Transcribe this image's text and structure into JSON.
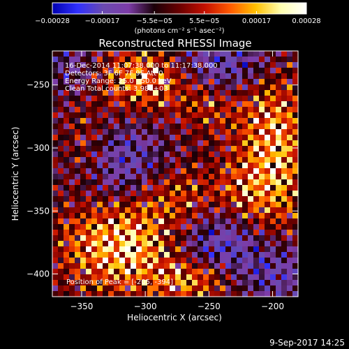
{
  "chart_data": {
    "type": "heatmap",
    "title": "Reconstructed RHESSI Image",
    "xlabel": "Heliocentric X (arcsec)",
    "ylabel": "Heliocentric Y (arcsec)",
    "xlim": [
      -373,
      -180
    ],
    "ylim": [
      -418,
      -223
    ],
    "x_ticks": [
      {
        "value": -350,
        "label": "−350"
      },
      {
        "value": -300,
        "label": "−300"
      },
      {
        "value": -250,
        "label": "−250"
      },
      {
        "value": -200,
        "label": "−200"
      }
    ],
    "y_ticks": [
      {
        "value": -250,
        "label": "−250"
      },
      {
        "value": -300,
        "label": "−300"
      },
      {
        "value": -350,
        "label": "−350"
      },
      {
        "value": -400,
        "label": "−400"
      }
    ],
    "colorbar": {
      "min": -0.00028,
      "max": 0.00028,
      "unit_label": "(photons cm⁻² s⁻¹ asec⁻²)",
      "ticks": [
        {
          "value": -0.00028,
          "label": "−0.00028"
        },
        {
          "value": -0.00017,
          "label": "−0.00017"
        },
        {
          "value": -5.5e-05,
          "label": "−5.5e−05"
        },
        {
          "value": 5.5e-05,
          "label": "5.5e−05"
        },
        {
          "value": 0.00017,
          "label": "0.00017"
        },
        {
          "value": 0.00028,
          "label": "0.00028"
        }
      ]
    },
    "colormap_stops": [
      "#0000b0",
      "#3030ff",
      "#6a4ab0",
      "#7d3ca8",
      "#1a0008",
      "#6a0000",
      "#c41000",
      "#ff5a00",
      "#ffc000",
      "#ffffb0",
      "#ffffff"
    ],
    "info_lines": [
      "16-Dec-2014 11:07:38.000 to 11:17:38.000",
      "Detectors: 3F 6F 7F 9F  Att 0",
      "Energy Range: 25.0 - 50.0 keV",
      "Clean    Total counts: 3.98E+03"
    ],
    "peak_annotation": "Position of Peak = [-205, -394]",
    "peak_position": [
      -205,
      -394
    ],
    "timestamp": "9-Sep-2017 14:25",
    "hot_regions": [
      {
        "x": -318,
        "y": -378,
        "sx": 30,
        "sy": 22,
        "amp": 1.9
      },
      {
        "x": -265,
        "y": -405,
        "sx": 22,
        "sy": 12,
        "amp": 1.2
      },
      {
        "x": -200,
        "y": -300,
        "sx": 18,
        "sy": 45,
        "amp": 1.6
      },
      {
        "x": -300,
        "y": -245,
        "sx": 22,
        "sy": 16,
        "amp": 1.5
      },
      {
        "x": -250,
        "y": -265,
        "sx": 18,
        "sy": 16,
        "amp": 0.7
      },
      {
        "x": -345,
        "y": -300,
        "sx": 14,
        "sy": 22,
        "amp": 0.6
      },
      {
        "x": -275,
        "y": -340,
        "sx": 20,
        "sy": 18,
        "amp": 0.8
      },
      {
        "x": -225,
        "y": -335,
        "sx": 16,
        "sy": 16,
        "amp": 0.7
      }
    ],
    "cold_regions": [
      {
        "x": -320,
        "y": -310,
        "sx": 26,
        "sy": 22,
        "amp": 1.3
      },
      {
        "x": -245,
        "y": -375,
        "sx": 30,
        "sy": 20,
        "amp": 1.4
      },
      {
        "x": -235,
        "y": -235,
        "sx": 34,
        "sy": 18,
        "amp": 1.4
      },
      {
        "x": -195,
        "y": -400,
        "sx": 24,
        "sy": 18,
        "amp": 1.1
      },
      {
        "x": -360,
        "y": -235,
        "sx": 16,
        "sy": 16,
        "amp": 0.8
      }
    ],
    "grid": false
  }
}
